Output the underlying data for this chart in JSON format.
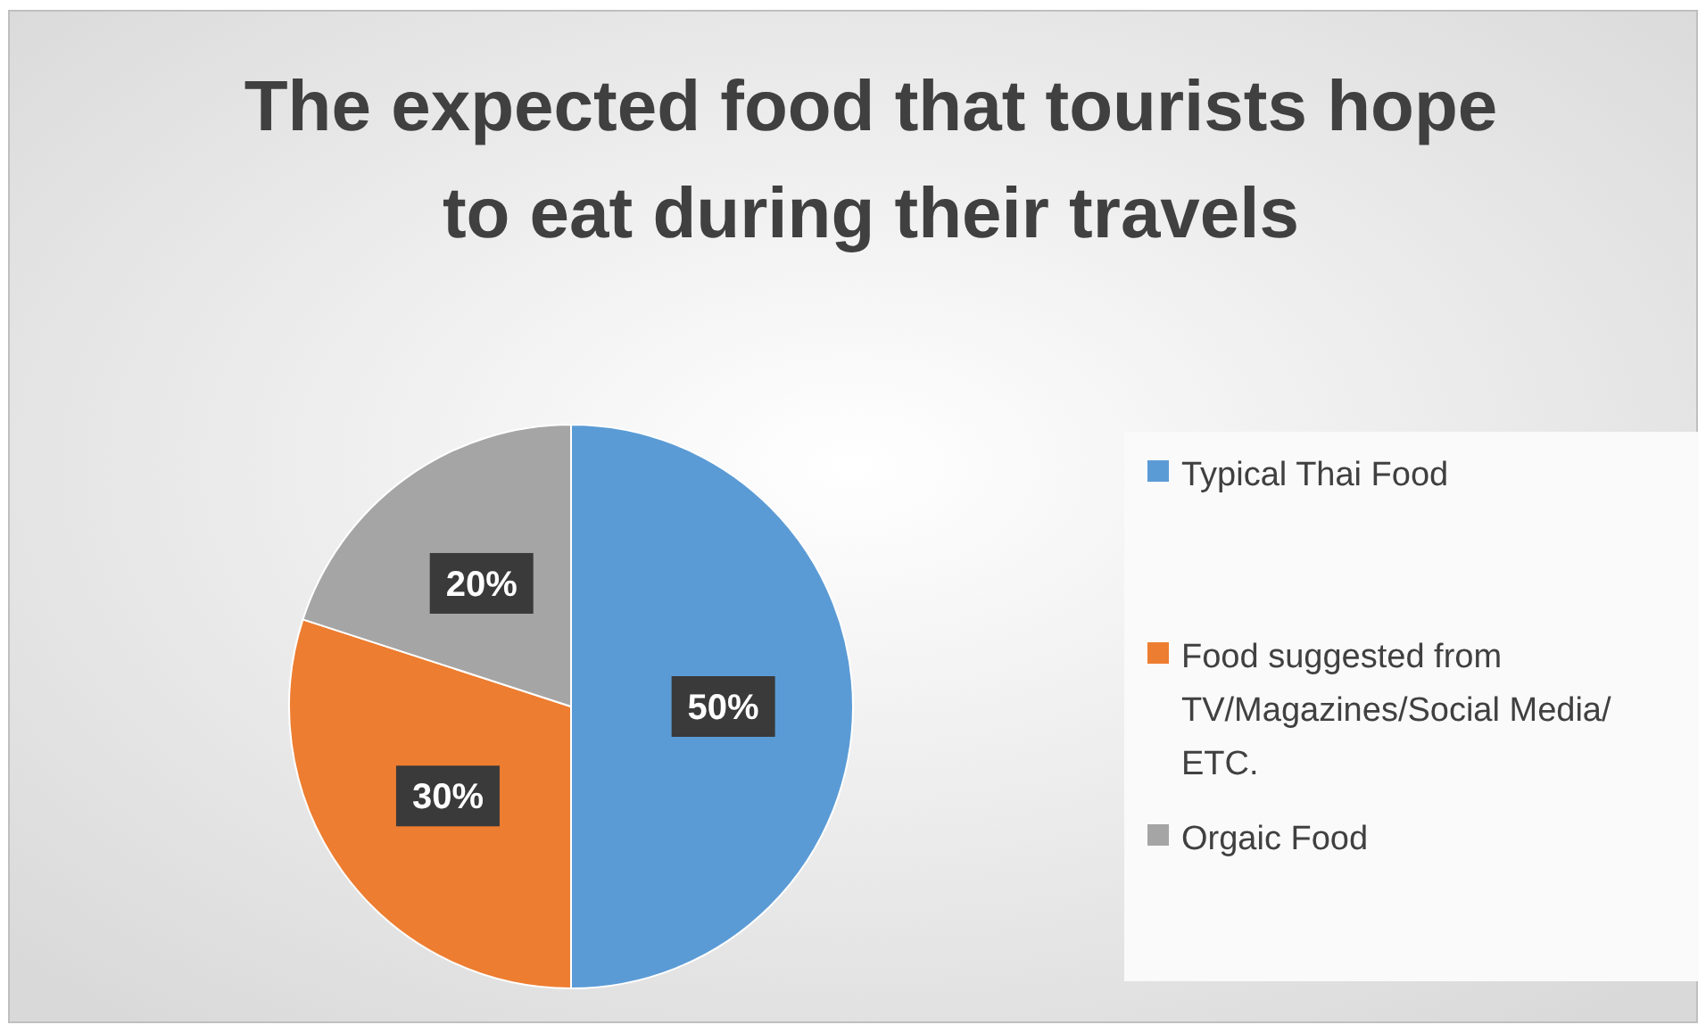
{
  "chart_data": {
    "type": "pie",
    "title": "The expected food that tourists hope to eat during their travels",
    "categories": [
      "Typical Thai Food",
      "Food suggested from TV/Magazines/Social Media/ ETC.",
      "Orgaic Food"
    ],
    "values": [
      50,
      30,
      20
    ],
    "colors": [
      "#5b9bd5",
      "#ed7d31",
      "#a5a5a5"
    ],
    "value_labels": [
      "50%",
      "30%",
      "20%"
    ],
    "legend": "right"
  }
}
